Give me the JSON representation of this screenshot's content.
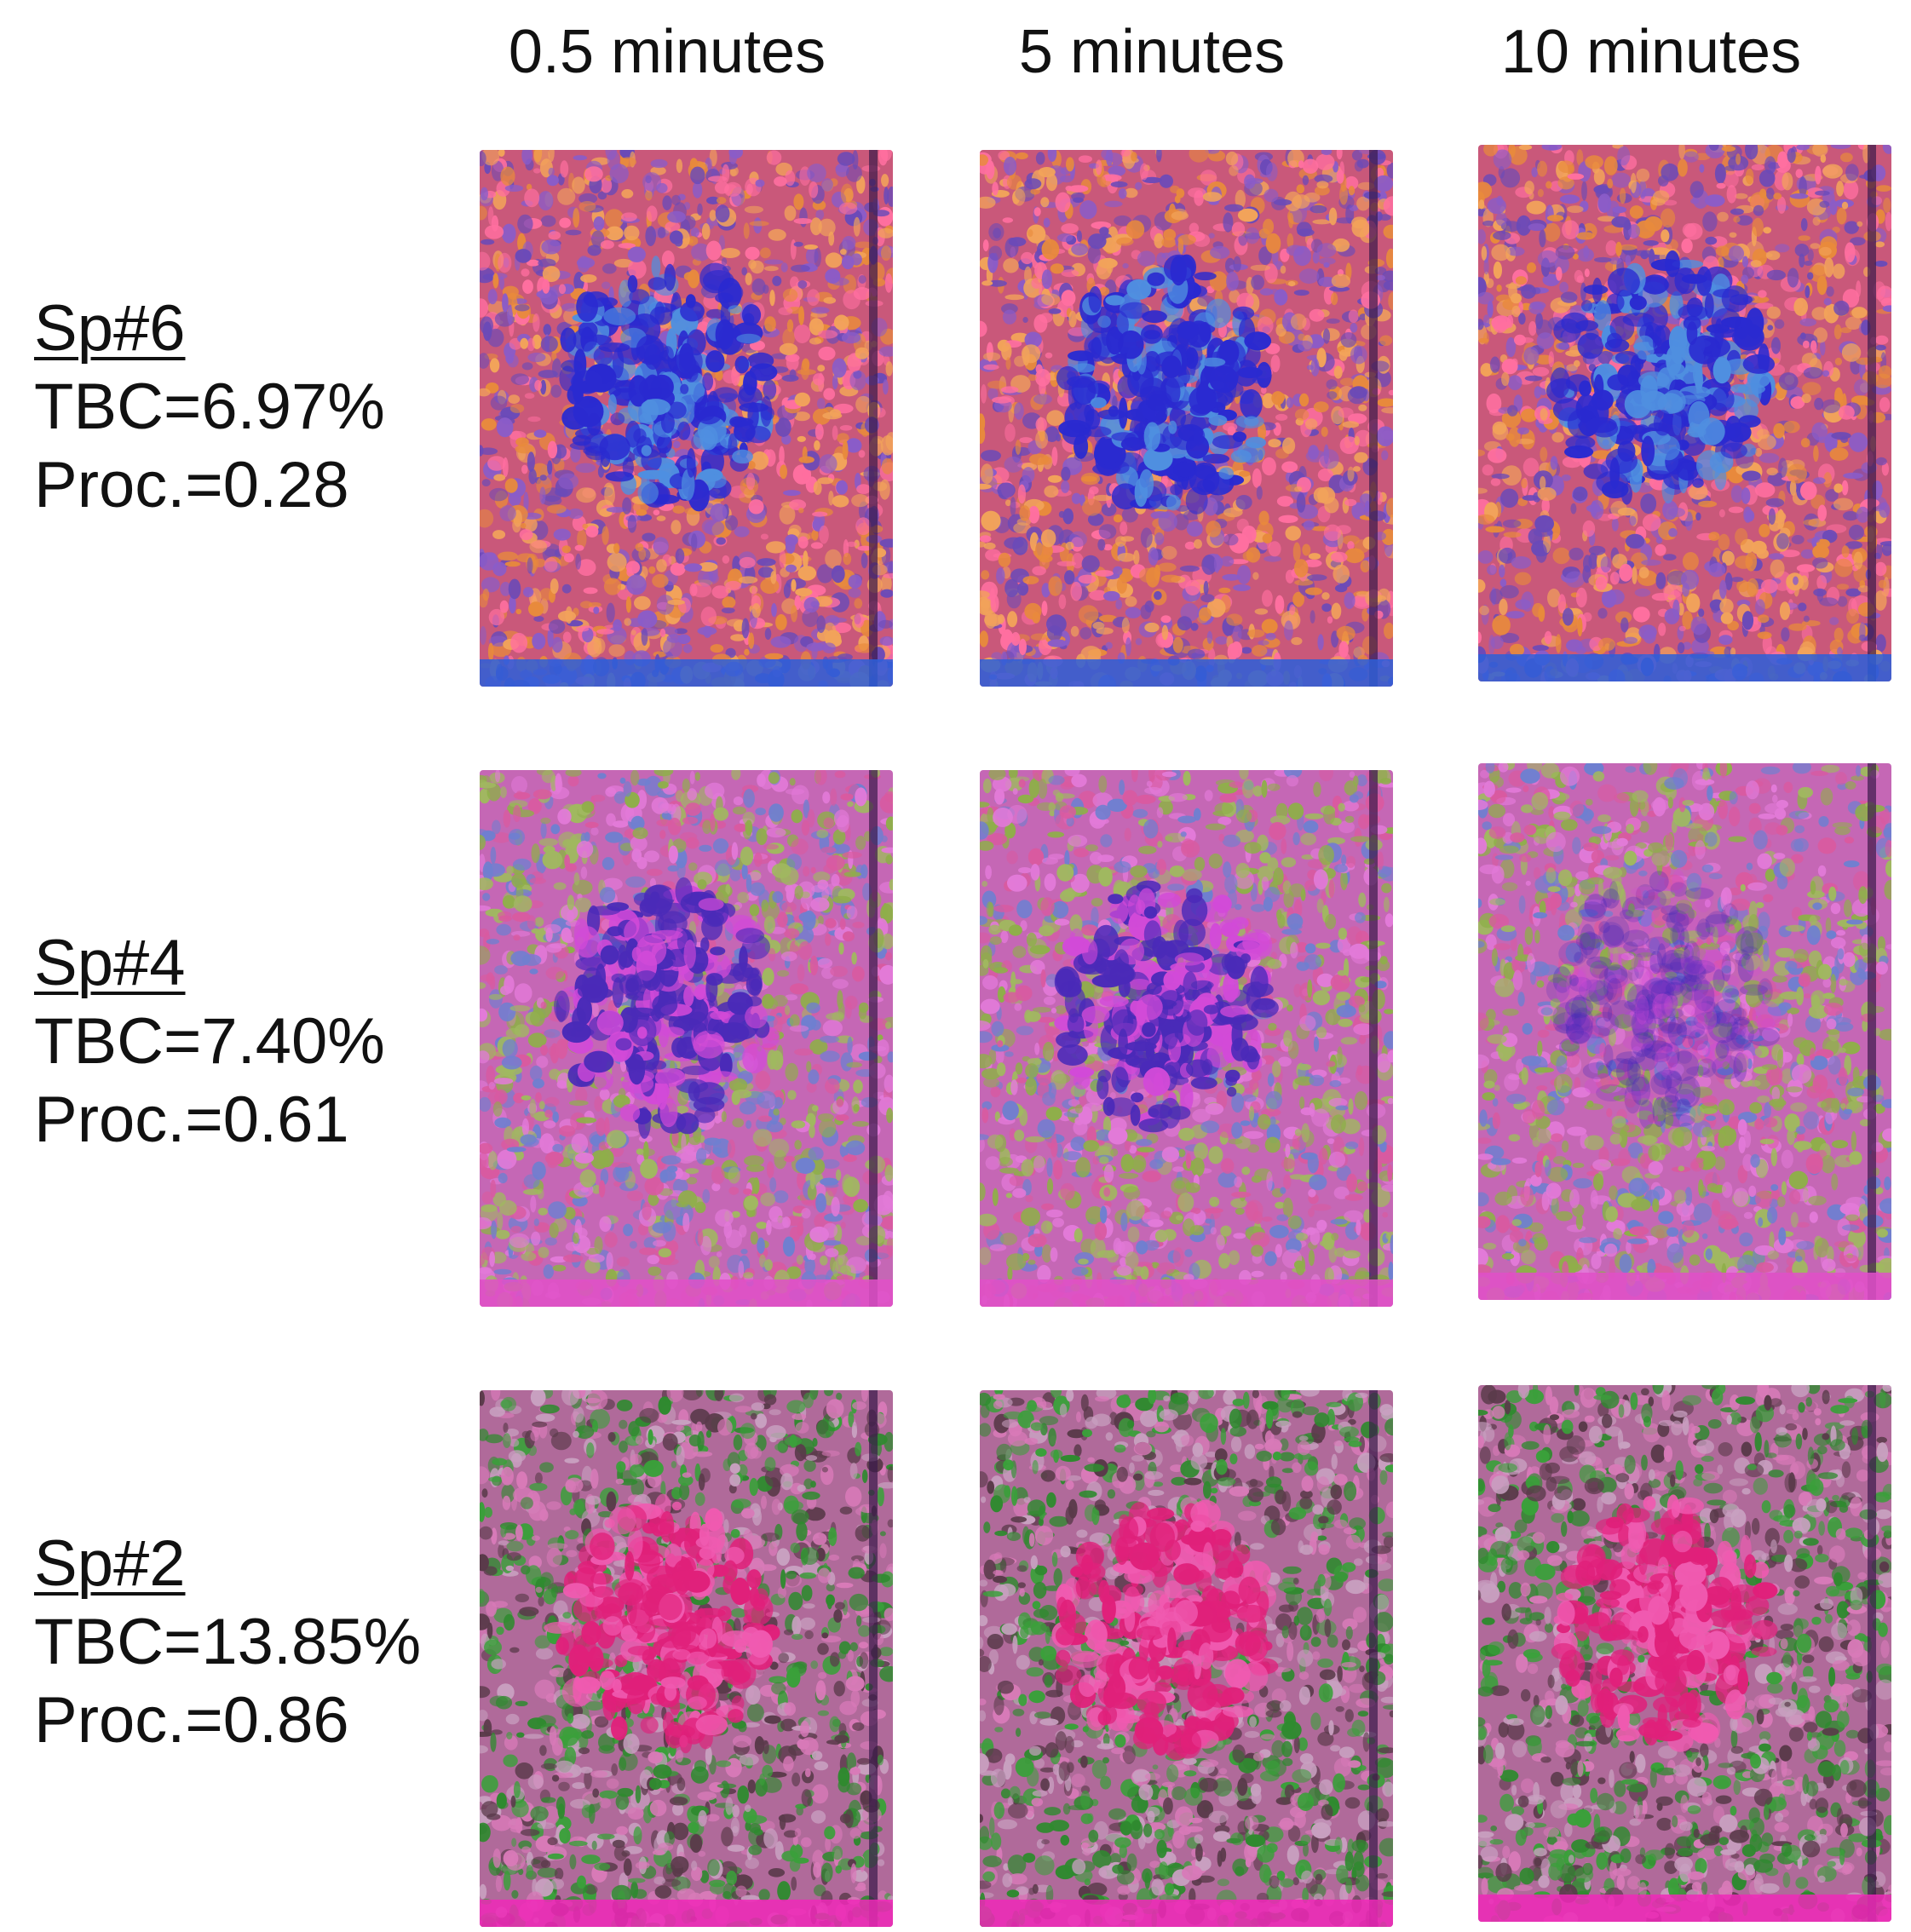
{
  "columns": [
    {
      "label": "0.5 minutes"
    },
    {
      "label": "5 minutes"
    },
    {
      "label": "10 minutes"
    }
  ],
  "rows": [
    {
      "specimen": "Sp#6",
      "tbc": "TBC=6.97%",
      "proc": "Proc.=0.28",
      "palette": {
        "base": "#c9587a",
        "speckle": [
          "#e88a3c",
          "#8a5cc8",
          "#ff6fa0",
          "#6a4ab8",
          "#f2a35a"
        ],
        "core": "#2a2ad0",
        "core_light": "#4f8fe0",
        "edge": "#2b5fd9"
      }
    },
    {
      "specimen": "Sp#4",
      "tbc": "TBC=7.40%",
      "proc": "Proc.=0.61",
      "palette": {
        "base": "#c567b5",
        "speckle": [
          "#8fae4a",
          "#e27ad8",
          "#6f7fd0",
          "#d95aa0",
          "#a0b860"
        ],
        "core": "#4a2ab8",
        "core_light": "#d24ad8",
        "edge": "#e050c8"
      }
    },
    {
      "specimen": "Sp#2",
      "tbc": "TBC=13.85%",
      "proc": "Proc.=0.86",
      "palette": {
        "base": "#b06a9a",
        "speckle": [
          "#3aa03a",
          "#d87ab8",
          "#5a3a4a",
          "#c8a0c0",
          "#2f8a2f"
        ],
        "core": "#e0207a",
        "core_light": "#f05ab0",
        "edge": "#f028b8"
      }
    }
  ]
}
